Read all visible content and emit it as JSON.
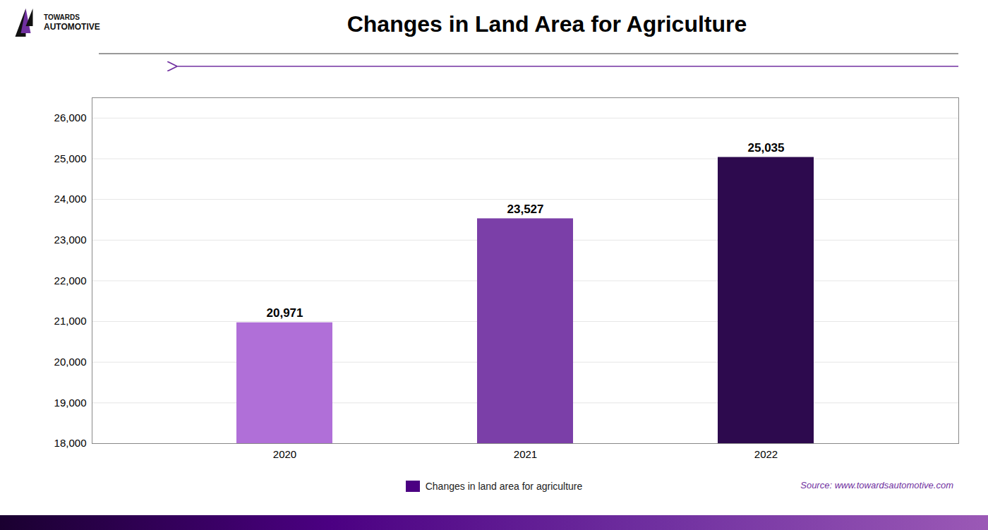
{
  "chart_data": {
    "type": "bar",
    "title": "Changes in Land Area for Agriculture",
    "categories": [
      "2020",
      "2021",
      "2022"
    ],
    "series": [
      {
        "name": "Changes in land area for agriculture",
        "color": "#4b0082",
        "colors": [
          "#b06fd8",
          "#7b3fa8",
          "#2d0a4e"
        ],
        "values": [
          20971,
          23527,
          25035
        ],
        "value_labels": [
          "20,971",
          "23,527",
          "25,035"
        ]
      }
    ],
    "ylim": [
      18000,
      26500
    ],
    "yticks": [
      {
        "value": 18000,
        "label": "18,000"
      },
      {
        "value": 19000,
        "label": "19,000"
      },
      {
        "value": 20000,
        "label": "20,000"
      },
      {
        "value": 21000,
        "label": "21,000"
      },
      {
        "value": 22000,
        "label": "22,000"
      },
      {
        "value": 23000,
        "label": "23,000"
      },
      {
        "value": 24000,
        "label": "24,000"
      },
      {
        "value": 25000,
        "label": "25,000"
      },
      {
        "value": 26000,
        "label": "26,000"
      }
    ],
    "grid": true,
    "legend": "bottom",
    "data_labels": true,
    "annotations": [
      "Source: www.towardsautomotive.com",
      "TOWARDS",
      "AUTOMOTIVE"
    ]
  }
}
